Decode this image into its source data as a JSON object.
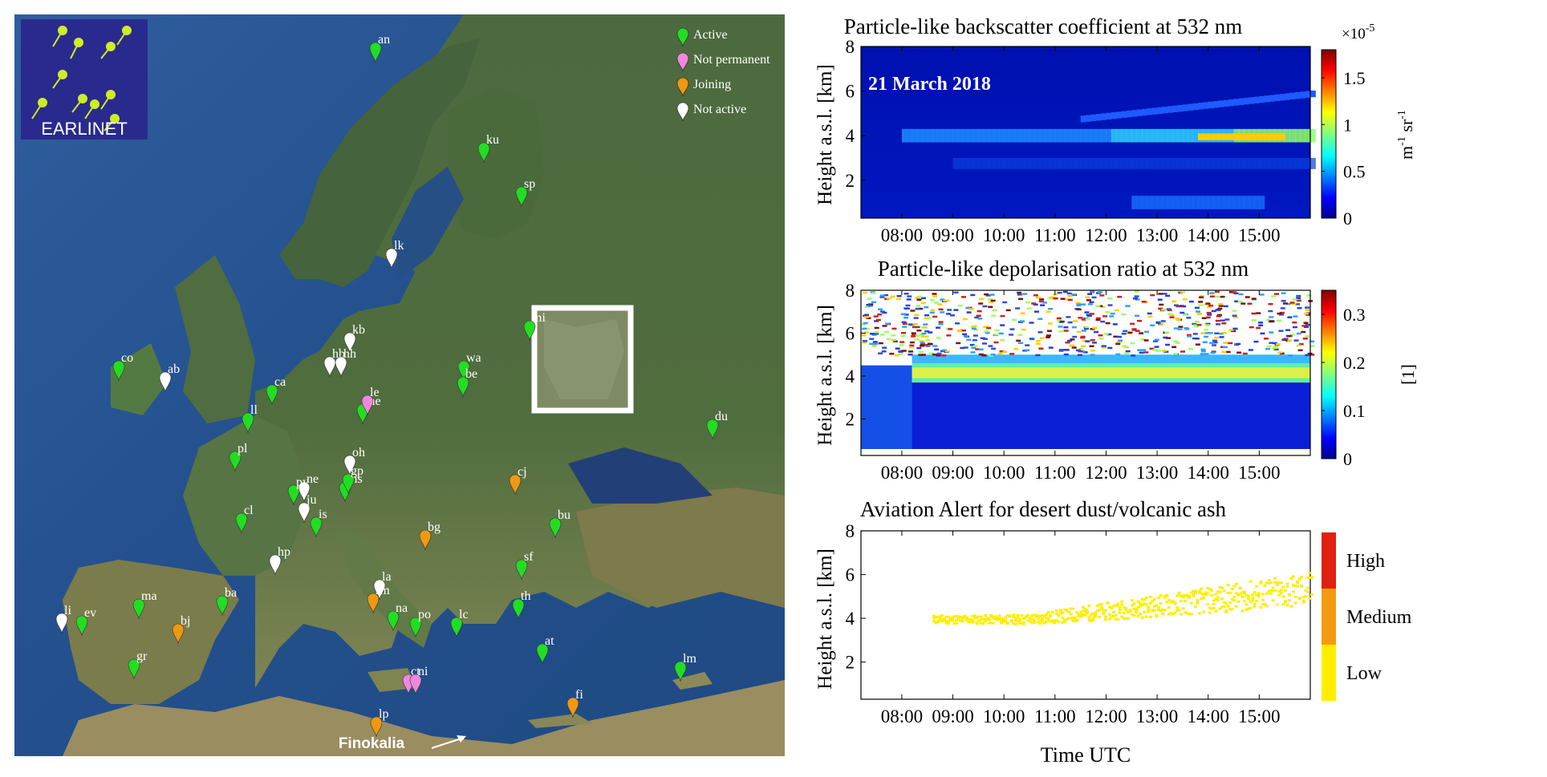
{
  "map": {
    "logo_text": "EARLINET",
    "legend": [
      {
        "label": "Active",
        "color": "#22dd22"
      },
      {
        "label": "Not permanent",
        "color": "#ee88dd"
      },
      {
        "label": "Joining",
        "color": "#ee9911"
      },
      {
        "label": "Not active",
        "color": "#ffffff"
      }
    ],
    "stations": [
      {
        "code": "an",
        "status": "active"
      },
      {
        "code": "ku",
        "status": "active"
      },
      {
        "code": "sp",
        "status": "active"
      },
      {
        "code": "lk",
        "status": "inactive"
      },
      {
        "code": "kb",
        "status": "inactive"
      },
      {
        "code": "hb",
        "status": "inactive"
      },
      {
        "code": "hh",
        "status": "inactive"
      },
      {
        "code": "mi",
        "status": "active"
      },
      {
        "code": "co",
        "status": "active"
      },
      {
        "code": "ab",
        "status": "inactive"
      },
      {
        "code": "wa",
        "status": "active"
      },
      {
        "code": "be",
        "status": "active"
      },
      {
        "code": "ca",
        "status": "active"
      },
      {
        "code": "me",
        "status": "active"
      },
      {
        "code": "le",
        "status": "notperm"
      },
      {
        "code": "ll",
        "status": "active"
      },
      {
        "code": "du",
        "status": "active"
      },
      {
        "code": "pl",
        "status": "active"
      },
      {
        "code": "oh",
        "status": "inactive"
      },
      {
        "code": "ne",
        "status": "inactive"
      },
      {
        "code": "ms",
        "status": "active"
      },
      {
        "code": "gp",
        "status": "active"
      },
      {
        "code": "py",
        "status": "active"
      },
      {
        "code": "cj",
        "status": "joining"
      },
      {
        "code": "ju",
        "status": "inactive"
      },
      {
        "code": "cl",
        "status": "active"
      },
      {
        "code": "is",
        "status": "active"
      },
      {
        "code": "bu",
        "status": "active"
      },
      {
        "code": "bg",
        "status": "joining"
      },
      {
        "code": "hp",
        "status": "inactive"
      },
      {
        "code": "sf",
        "status": "active"
      },
      {
        "code": "la",
        "status": "inactive"
      },
      {
        "code": "rm",
        "status": "joining"
      },
      {
        "code": "ma",
        "status": "active"
      },
      {
        "code": "ba",
        "status": "active"
      },
      {
        "code": "th",
        "status": "active"
      },
      {
        "code": "li",
        "status": "inactive"
      },
      {
        "code": "ev",
        "status": "active"
      },
      {
        "code": "bj",
        "status": "joining"
      },
      {
        "code": "na",
        "status": "active"
      },
      {
        "code": "lc",
        "status": "active"
      },
      {
        "code": "po",
        "status": "active"
      },
      {
        "code": "at",
        "status": "active"
      },
      {
        "code": "gr",
        "status": "active"
      },
      {
        "code": "lm",
        "status": "active"
      },
      {
        "code": "ct",
        "status": "notperm"
      },
      {
        "code": "ni",
        "status": "notperm"
      },
      {
        "code": "fi",
        "status": "joining"
      },
      {
        "code": "lp",
        "status": "joining"
      }
    ],
    "callout_label": "Finokalia"
  },
  "chart_data": [
    {
      "type": "heatmap",
      "title": "Particle-like backscatter coefficient at 532 nm",
      "annotation": "21 March 2018",
      "xlabel": "",
      "ylabel": "Height a.s.l. [km]",
      "x_ticks": [
        "08:00",
        "09:00",
        "10:00",
        "11:00",
        "12:00",
        "13:00",
        "14:00",
        "15:00"
      ],
      "y_ticks": [
        "2",
        "4",
        "6",
        "8"
      ],
      "ylim": [
        0.3,
        8
      ],
      "colorbar": {
        "label": "m-1 sr-1",
        "exponent": "×10-5",
        "ticks": [
          "0",
          "0.5",
          "1",
          "1.5"
        ],
        "range": [
          0,
          1.8e-05
        ],
        "colormap": "jet"
      },
      "features": {
        "layer_height_km": [
          3.8,
          4.0
        ],
        "peak_time": "14:30",
        "peak_value": 1.5e-05
      }
    },
    {
      "type": "heatmap",
      "title": "Particle-like depolarisation ratio at 532 nm",
      "xlabel": "",
      "ylabel": "Height a.s.l. [km]",
      "x_ticks": [
        "08:00",
        "09:00",
        "10:00",
        "11:00",
        "12:00",
        "13:00",
        "14:00",
        "15:00"
      ],
      "y_ticks": [
        "2",
        "4",
        "6",
        "8"
      ],
      "ylim": [
        0.3,
        8
      ],
      "colorbar": {
        "label": "[1]",
        "ticks": [
          "0",
          "0.1",
          "0.2",
          "0.3"
        ],
        "range": [
          0,
          0.35
        ],
        "colormap": "jet"
      },
      "features": {
        "dust_layer_km": [
          3.8,
          4.5
        ],
        "dust_depol": 0.2
      }
    },
    {
      "type": "heatmap",
      "title": "Aviation Alert for desert dust/volcanic ash",
      "xlabel": "Time UTC",
      "ylabel": "Height a.s.l. [km]",
      "x_ticks": [
        "08:00",
        "09:00",
        "10:00",
        "11:00",
        "12:00",
        "13:00",
        "14:00",
        "15:00"
      ],
      "y_ticks": [
        "2",
        "4",
        "6",
        "8"
      ],
      "ylim": [
        0.3,
        8
      ],
      "categories": [
        "Low",
        "Medium",
        "High"
      ],
      "colors": [
        "#ffee00",
        "#f59a10",
        "#e02010"
      ],
      "features": {
        "alert_level": "Low",
        "layer_start_km": 4.0,
        "layer_end_km": 5.5
      }
    }
  ]
}
